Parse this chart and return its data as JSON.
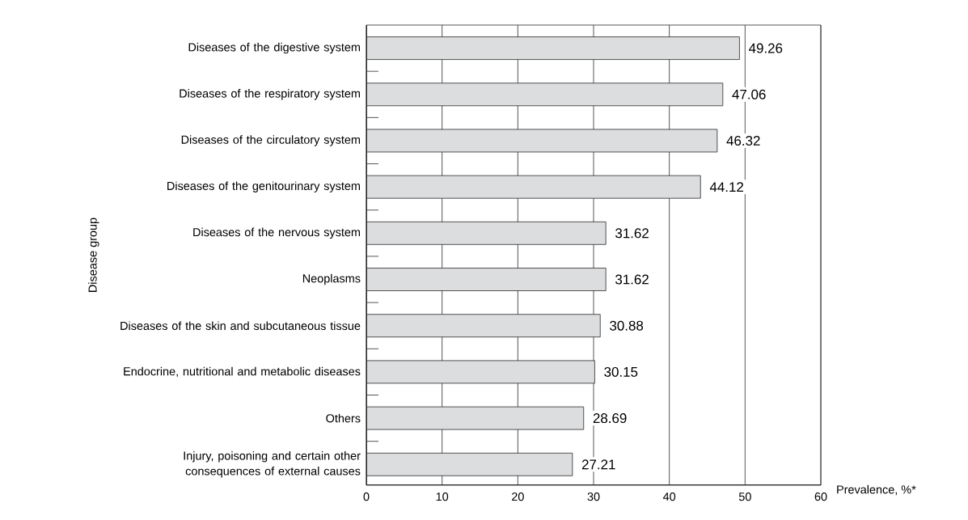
{
  "chart_data": {
    "type": "bar",
    "orientation": "horizontal",
    "xlabel": "Prevalence, %*",
    "ylabel": "Disease group",
    "categories": [
      "Diseases of the digestive system",
      "Diseases of the respiratory system",
      "Diseases of the circulatory system",
      "Diseases of the genitourinary system",
      "Diseases of the nervous system",
      "Neoplasms",
      "Diseases of the skin and subcutaneous tissue",
      "Endocrine, nutritional and metabolic diseases",
      "Others",
      "Injury, poisoning and certain other consequences of external causes"
    ],
    "values": [
      49.26,
      47.06,
      46.32,
      44.12,
      31.62,
      31.62,
      30.88,
      30.15,
      28.69,
      27.21
    ],
    "color": "#dcdddf",
    "xlim": [
      0,
      60
    ],
    "xticks": [
      0,
      10,
      20,
      30,
      40,
      50,
      60
    ],
    "grid": "x",
    "data_labels": true
  }
}
